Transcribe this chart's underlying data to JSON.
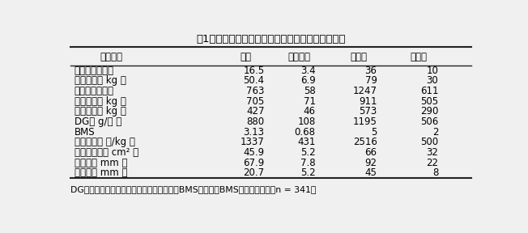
{
  "title": "表1　測定値の平均及び標準偏差、最大値、最小値",
  "headers": [
    "測定項目",
    "平均",
    "標準偏差",
    "最大値",
    "最小値"
  ],
  "rows": [
    [
      "導入日齢（日）",
      "16.5",
      "3.4",
      "36",
      "10"
    ],
    [
      "導入体重（ kg ）",
      "50.4",
      "6.9",
      "79",
      "30"
    ],
    [
      "出荷日齢（日）",
      "763",
      "58",
      "1247",
      "611"
    ],
    [
      "出荷体重（ kg ）",
      "705",
      "71",
      "911",
      "505"
    ],
    [
      "枝肉重量（ kg ）",
      "427",
      "46",
      "573",
      "290"
    ],
    [
      "DG（ g/日 ）",
      "880",
      "108",
      "1195",
      "506"
    ],
    [
      "BMS",
      "3.13",
      "0.68",
      "5",
      "2"
    ],
    [
      "枝肉単価（ 円/kg ）",
      "1337",
      "431",
      "2516",
      "500"
    ],
    [
      "ロース面積（ cm² ）",
      "45.9",
      "5.2",
      "66",
      "32"
    ],
    [
      "バラ厚（ mm ）",
      "67.9",
      "7.8",
      "92",
      "22"
    ],
    [
      "脂肪厚（ mm ）",
      "20.7",
      "5.2",
      "45",
      "8"
    ]
  ],
  "footnote": "DGは導入から出荷までの一日平均増体量、BMSは枝肉のBMSナンバー。　（n = 341）",
  "background_color": "#f0f0f0",
  "line_color": "#222222",
  "font_size": 8.5,
  "header_font_size": 8.5,
  "title_font_size": 9.5,
  "footnote_font_size": 7.8
}
